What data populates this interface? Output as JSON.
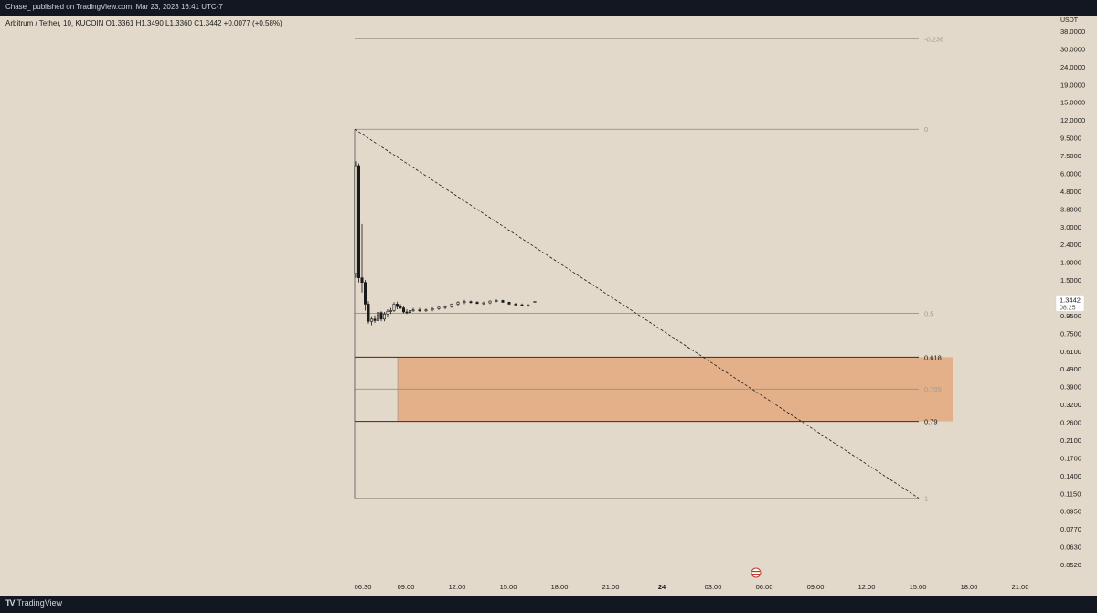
{
  "header": {
    "published_text": "Chase_ published on TradingView.com, Mar 23, 2023 16:41 UTC-7"
  },
  "legend": {
    "text": "Arbitrum / Tether, 10, KUCOIN  O1.3361  H1.3490  L1.3360  C1.3442  +0.0077 (+0.58%)"
  },
  "footer": {
    "brand": "TradingView"
  },
  "colors": {
    "background": "#e3d9ca",
    "zone_fill": "#e4b08a",
    "zone_edge": "#b85c2c",
    "candle": "#1a1a1a"
  },
  "chart_data": {
    "type": "candlestick",
    "symbol": "Arbitrum / Tether",
    "timeframe": "10",
    "exchange": "KUCOIN",
    "ohlc": {
      "open": 1.3361,
      "high": 1.349,
      "low": 1.336,
      "close": 1.3442,
      "change": "+0.0077 (+0.58%)"
    },
    "y_scale": "log",
    "currency": "USDT",
    "price_ticks": [
      "38.0000",
      "30.0000",
      "24.0000",
      "19.0000",
      "15.0000",
      "12.0000",
      "9.5000",
      "7.5000",
      "6.0000",
      "4.8000",
      "3.8000",
      "3.0000",
      "2.4000",
      "1.9000",
      "1.5000",
      "1.2000",
      "0.9500",
      "0.7500",
      "0.6100",
      "0.4900",
      "0.3900",
      "0.3200",
      "0.2600",
      "0.2100",
      "0.1700",
      "0.1400",
      "0.1150",
      "0.0950",
      "0.0770",
      "0.0630",
      "0.0520"
    ],
    "time_ticks": [
      "06:30",
      "09:00",
      "12:00",
      "15:00",
      "18:00",
      "21:00",
      "24",
      "03:00",
      "06:00",
      "09:00",
      "12:00",
      "15:00",
      "18:00",
      "21:00"
    ],
    "last_price": {
      "price": "1.3442",
      "countdown": "08:25"
    },
    "fib_levels": [
      {
        "label": "-0.236",
        "price": 34.5
      },
      {
        "label": "0",
        "price": 11.3
      },
      {
        "label": "0.5",
        "price": 1.16
      },
      {
        "label": "0.618",
        "price": 0.675
      },
      {
        "label": "0.705",
        "price": 0.455
      },
      {
        "label": "0.79",
        "price": 0.305
      },
      {
        "label": "1",
        "price": 0.118
      }
    ],
    "zone": {
      "top": 0.675,
      "bottom": 0.305
    },
    "candles": [
      {
        "t": 0,
        "o": 1.9,
        "h": 7.6,
        "l": 1.8,
        "c": 7.2
      },
      {
        "t": 1,
        "o": 7.2,
        "h": 7.4,
        "l": 1.7,
        "c": 1.8
      },
      {
        "t": 2,
        "o": 1.8,
        "h": 3.5,
        "l": 1.5,
        "c": 1.7
      },
      {
        "t": 3,
        "o": 1.7,
        "h": 1.75,
        "l": 1.2,
        "c": 1.3
      },
      {
        "t": 4,
        "o": 1.3,
        "h": 1.35,
        "l": 1.02,
        "c": 1.05
      },
      {
        "t": 5,
        "o": 1.05,
        "h": 1.12,
        "l": 1.0,
        "c": 1.08
      },
      {
        "t": 6,
        "o": 1.08,
        "h": 1.13,
        "l": 1.03,
        "c": 1.06
      },
      {
        "t": 7,
        "o": 1.06,
        "h": 1.2,
        "l": 1.04,
        "c": 1.17
      },
      {
        "t": 8,
        "o": 1.17,
        "h": 1.19,
        "l": 1.05,
        "c": 1.08
      },
      {
        "t": 9,
        "o": 1.08,
        "h": 1.18,
        "l": 1.05,
        "c": 1.15
      },
      {
        "t": 10,
        "o": 1.15,
        "h": 1.22,
        "l": 1.1,
        "c": 1.19
      },
      {
        "t": 11,
        "o": 1.19,
        "h": 1.24,
        "l": 1.15,
        "c": 1.2
      },
      {
        "t": 12,
        "o": 1.2,
        "h": 1.33,
        "l": 1.18,
        "c": 1.3
      },
      {
        "t": 13,
        "o": 1.3,
        "h": 1.34,
        "l": 1.22,
        "c": 1.26
      },
      {
        "t": 14,
        "o": 1.26,
        "h": 1.3,
        "l": 1.22,
        "c": 1.24
      },
      {
        "t": 15,
        "o": 1.24,
        "h": 1.27,
        "l": 1.16,
        "c": 1.18
      },
      {
        "t": 16,
        "o": 1.18,
        "h": 1.22,
        "l": 1.15,
        "c": 1.17
      },
      {
        "t": 17,
        "o": 1.17,
        "h": 1.22,
        "l": 1.15,
        "c": 1.2
      },
      {
        "t": 18,
        "o": 1.2,
        "h": 1.24,
        "l": 1.18,
        "c": 1.21
      },
      {
        "t": 20,
        "o": 1.21,
        "h": 1.24,
        "l": 1.18,
        "c": 1.2
      },
      {
        "t": 22,
        "o": 1.2,
        "h": 1.23,
        "l": 1.18,
        "c": 1.21
      },
      {
        "t": 24,
        "o": 1.21,
        "h": 1.25,
        "l": 1.19,
        "c": 1.23
      },
      {
        "t": 26,
        "o": 1.23,
        "h": 1.27,
        "l": 1.21,
        "c": 1.25
      },
      {
        "t": 28,
        "o": 1.25,
        "h": 1.28,
        "l": 1.22,
        "c": 1.26
      },
      {
        "t": 30,
        "o": 1.26,
        "h": 1.31,
        "l": 1.24,
        "c": 1.3
      },
      {
        "t": 32,
        "o": 1.3,
        "h": 1.35,
        "l": 1.27,
        "c": 1.33
      },
      {
        "t": 34,
        "o": 1.33,
        "h": 1.37,
        "l": 1.3,
        "c": 1.34
      },
      {
        "t": 36,
        "o": 1.34,
        "h": 1.36,
        "l": 1.31,
        "c": 1.33
      },
      {
        "t": 38,
        "o": 1.33,
        "h": 1.35,
        "l": 1.3,
        "c": 1.31
      },
      {
        "t": 40,
        "o": 1.31,
        "h": 1.34,
        "l": 1.29,
        "c": 1.32
      },
      {
        "t": 42,
        "o": 1.32,
        "h": 1.36,
        "l": 1.3,
        "c": 1.35
      },
      {
        "t": 44,
        "o": 1.35,
        "h": 1.38,
        "l": 1.33,
        "c": 1.36
      },
      {
        "t": 46,
        "o": 1.36,
        "h": 1.37,
        "l": 1.32,
        "c": 1.33
      },
      {
        "t": 48,
        "o": 1.33,
        "h": 1.34,
        "l": 1.29,
        "c": 1.3
      },
      {
        "t": 50,
        "o": 1.3,
        "h": 1.32,
        "l": 1.28,
        "c": 1.29
      },
      {
        "t": 52,
        "o": 1.29,
        "h": 1.31,
        "l": 1.27,
        "c": 1.28
      },
      {
        "t": 54,
        "o": 1.28,
        "h": 1.3,
        "l": 1.26,
        "c": 1.27
      },
      {
        "t": 56,
        "o": 1.3361,
        "h": 1.349,
        "l": 1.336,
        "c": 1.3442
      }
    ]
  }
}
